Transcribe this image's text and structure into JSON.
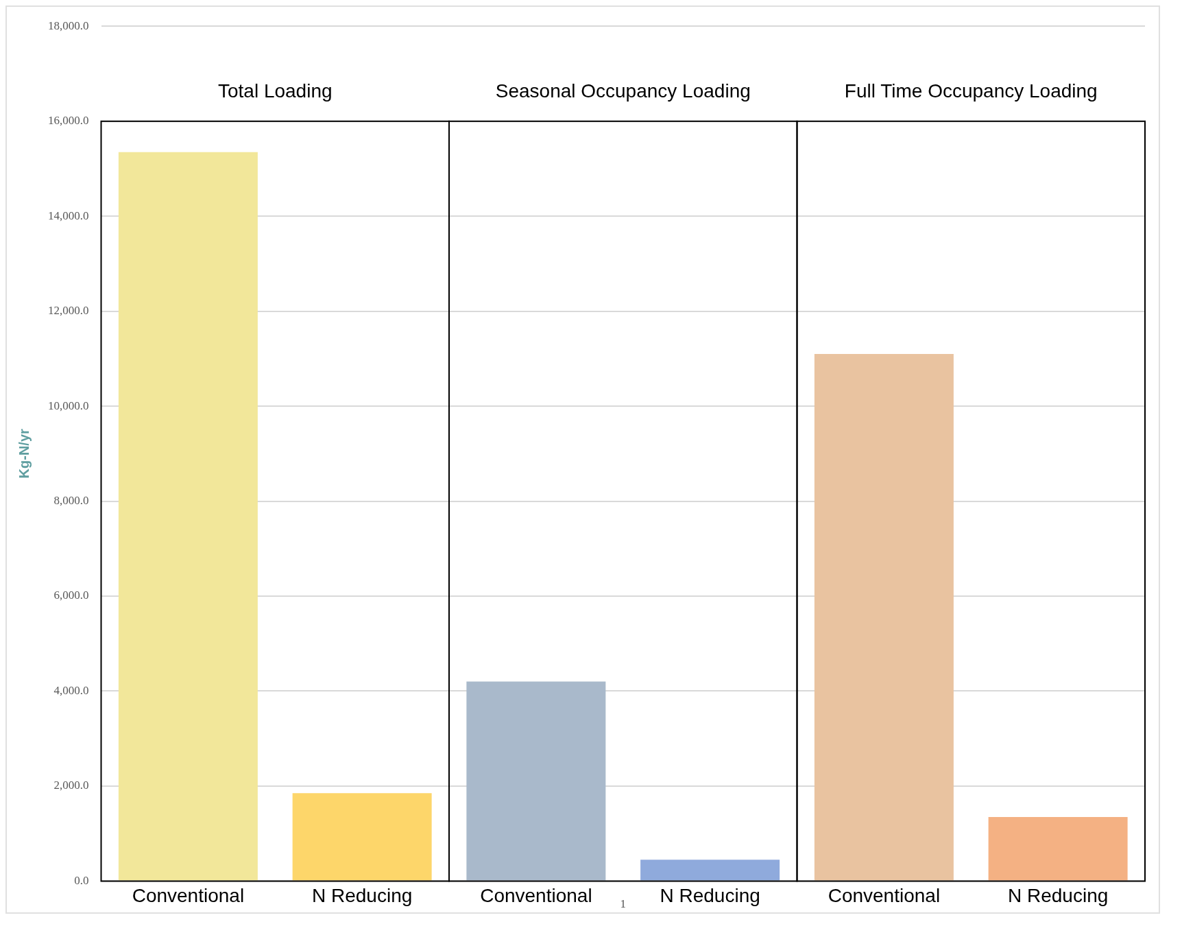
{
  "chart_data": {
    "type": "bar",
    "categories": [
      "Conventional",
      "N Reducing",
      "Conventional",
      "N Reducing",
      "Conventional",
      "N Reducing"
    ],
    "values": [
      15350,
      1850,
      4200,
      450,
      11100,
      1350
    ],
    "colors": [
      "#f2e79a",
      "#fdd66a",
      "#a9b9cb",
      "#8faadc",
      "#e9c3a0",
      "#f4b183"
    ],
    "ylabel": "Kg-N/yr",
    "ylim": [
      0,
      18000
    ],
    "yticks": [
      {
        "value": 0,
        "label": "0.0"
      },
      {
        "value": 2000,
        "label": "2,000.0"
      },
      {
        "value": 4000,
        "label": "4,000.0"
      },
      {
        "value": 6000,
        "label": "6,000.0"
      },
      {
        "value": 8000,
        "label": "8,000.0"
      },
      {
        "value": 10000,
        "label": "10,000.0"
      },
      {
        "value": 12000,
        "label": "12,000.0"
      },
      {
        "value": 14000,
        "label": "14,000.0"
      },
      {
        "value": 16000,
        "label": "16,000.0"
      },
      {
        "value": 18000,
        "label": "18,000.0"
      }
    ],
    "grid": "y",
    "annotations": [
      "Total Loading",
      "Seasonal Occupancy Loading",
      "Full Time Occupancy Loading",
      "1"
    ]
  }
}
